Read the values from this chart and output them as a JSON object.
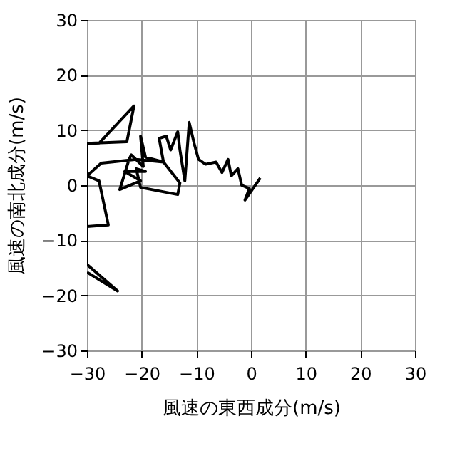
{
  "chart_data": {
    "type": "line",
    "xlabel": "風速の東西成分(m/s)",
    "ylabel": "風速の南北成分(m/s)",
    "x": [
      1.7,
      -1.1,
      -0.3,
      -1.7,
      -2.4,
      -3.6,
      -4.2,
      -5.3,
      -6.4,
      -8.3,
      -9.6,
      -10.4,
      -11.3,
      -12.1,
      -13.0,
      -13.4,
      -14.7,
      -15.5,
      -16.8,
      -16.0,
      -19.3,
      -20.2,
      -19.7,
      -21.9,
      -22.3,
      -24.0,
      -20.2,
      -23.1,
      -19.3,
      -21.0,
      -20.2,
      -13.4,
      -13.0,
      -16.0,
      -21.0,
      -27.4,
      -30.0,
      -27.8,
      -26.1,
      -30.0,
      -30.0,
      -22.7,
      -21.4,
      -27.8,
      -30.0,
      -30.0,
      -24.4,
      -30.0
    ],
    "series": [
      {
        "color": "#000000",
        "values": [
          1.3,
          -2.7,
          -0.6,
          0.0,
          3.0,
          1.7,
          4.7,
          2.3,
          4.2,
          3.8,
          4.7,
          7.6,
          11.4,
          0.8,
          6.4,
          9.7,
          6.4,
          8.9,
          8.5,
          4.2,
          5.1,
          8.9,
          3.4,
          5.5,
          4.7,
          -0.8,
          0.8,
          2.5,
          2.5,
          3.0,
          -0.4,
          -1.7,
          0.4,
          4.2,
          4.7,
          4.0,
          1.7,
          0.8,
          -7.2,
          -7.5,
          7.6,
          7.9,
          14.4,
          7.6,
          7.6,
          -14.4,
          -19.2,
          -15.8
        ]
      }
    ],
    "xlim": [
      -30,
      30
    ],
    "ylim": [
      -30,
      30
    ],
    "xticks": [
      -30,
      -20,
      -10,
      0,
      10,
      20,
      30
    ],
    "yticks": [
      -30,
      -20,
      -10,
      0,
      10,
      20,
      30
    ],
    "grid": true,
    "line_style": "solid",
    "marker": "none"
  }
}
